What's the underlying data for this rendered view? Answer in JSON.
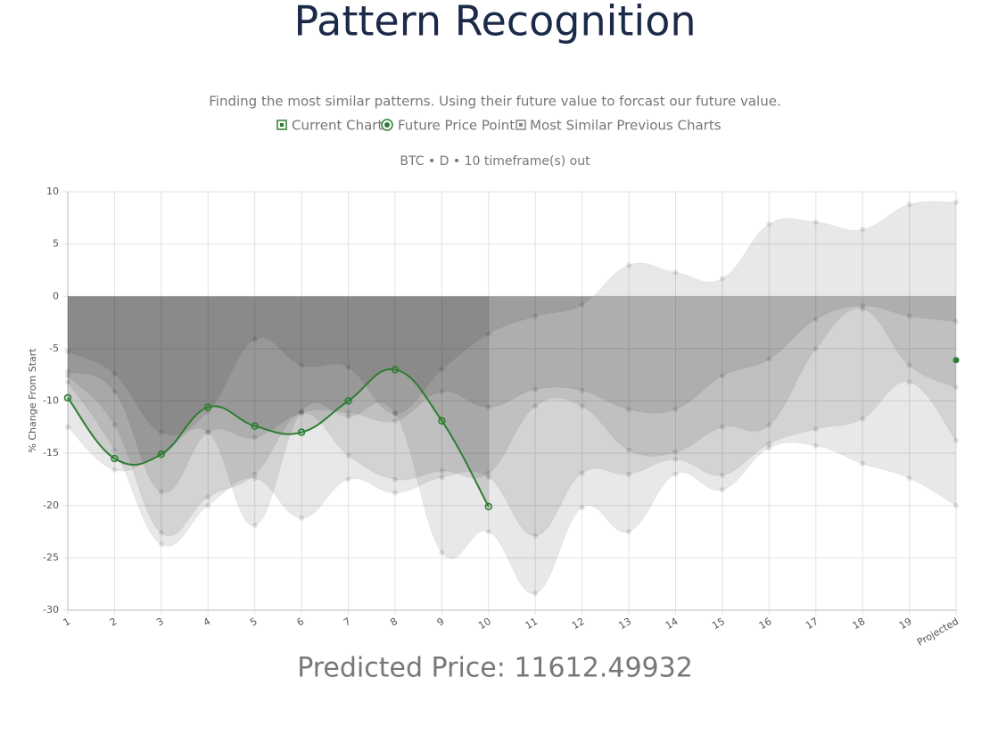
{
  "chart_data": {
    "type": "line",
    "title": "Pattern Recognition",
    "subtitle": "Finding the most similar patterns. Using their future value to forcast our future value.",
    "chart_title": "BTC • D • 10 timeframe(s) out",
    "ylabel": "% Change From Start",
    "footer": "Predicted Price: 11612.49932",
    "categories": [
      "1",
      "2",
      "3",
      "4",
      "5",
      "6",
      "7",
      "8",
      "9",
      "10",
      "11",
      "12",
      "13",
      "14",
      "15",
      "16",
      "17",
      "18",
      "19",
      "Projected"
    ],
    "ylim": [
      -30,
      10
    ],
    "yticks": [
      -30,
      -25,
      -20,
      -15,
      -10,
      -5,
      0,
      5,
      10
    ],
    "grid": true,
    "series": [
      {
        "name": "Current Chart",
        "color": "#2e7d32",
        "values": [
          -9.7,
          -15.5,
          -15.1,
          -10.6,
          -12.4,
          -13.0,
          -10.0,
          -7.0,
          -11.9,
          -20.1,
          null,
          null,
          null,
          null,
          null,
          null,
          null,
          null,
          null,
          null
        ]
      },
      {
        "name": "Future Price Point",
        "color": "#2e7d32",
        "values": [
          null,
          null,
          null,
          null,
          null,
          null,
          null,
          null,
          null,
          null,
          null,
          null,
          null,
          null,
          null,
          null,
          null,
          null,
          null,
          -6.1
        ]
      }
    ],
    "similar": {
      "name": "Most Similar Previous Charts",
      "color": "#999999",
      "lines": [
        [
          -5.3,
          -7.4,
          -13.0,
          -11.0,
          -4.1,
          -6.6,
          -6.8,
          -11.2,
          -7.0,
          -3.6,
          -1.9,
          -0.8,
          3.0,
          2.3,
          1.7,
          6.9,
          7.1,
          6.4,
          8.8,
          9.0
        ],
        [
          -7.2,
          -9.1,
          -18.7,
          -13.0,
          -13.5,
          -11.1,
          -11.1,
          -11.9,
          -9.1,
          -10.6,
          -8.9,
          -9.0,
          -10.8,
          -10.8,
          -7.6,
          -6.0,
          -2.2,
          -0.9,
          -1.9,
          -2.4
        ],
        [
          -7.6,
          -12.3,
          -22.6,
          -19.2,
          -17.0,
          -11.2,
          -15.2,
          -17.5,
          -16.7,
          -16.9,
          -10.5,
          -10.5,
          -14.7,
          -14.9,
          -12.5,
          -12.3,
          -5.0,
          -1.2,
          -6.6,
          -8.7
        ],
        [
          -8.2,
          -14.7,
          -23.7,
          -20.0,
          -17.4,
          -21.2,
          -17.5,
          -18.8,
          -17.3,
          -17.3,
          -22.9,
          -16.9,
          -17.0,
          -15.6,
          -17.1,
          -14.1,
          -12.7,
          -11.7,
          -8.2,
          -13.8
        ],
        [
          -12.5,
          -16.6,
          -15.0,
          -13.0,
          -21.9,
          -11.0,
          -11.5,
          -11.2,
          -24.5,
          -22.5,
          -28.4,
          -20.2,
          -22.5,
          -17.0,
          -18.5,
          -14.5,
          -14.3,
          -16.0,
          -17.4,
          -20.0
        ]
      ]
    }
  }
}
